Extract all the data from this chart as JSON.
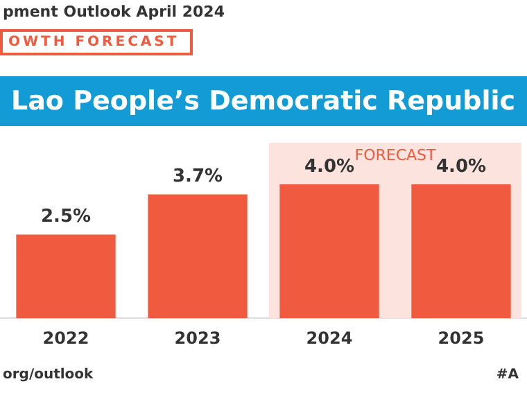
{
  "chart_data": {
    "type": "bar",
    "title": "Lao People’s Democratic Republic",
    "subtitle": "OWTH FORECAST",
    "annotations": [
      "pment Outlook April 2024",
      "org/outlook",
      "#A"
    ],
    "categories": [
      "2022",
      "2023",
      "2024",
      "2025"
    ],
    "values": [
      2.5,
      3.7,
      4.0,
      4.0
    ],
    "color": "#f05a3f",
    "value_labels": [
      "2.5%",
      "3.7%",
      "4.0%",
      "4.0%"
    ],
    "bands": [
      {
        "axis": "x",
        "from": "2024",
        "to": "2025",
        "label": "FORECAST",
        "color": "#fde3dd"
      }
    ],
    "grid": false,
    "legend": false
  }
}
